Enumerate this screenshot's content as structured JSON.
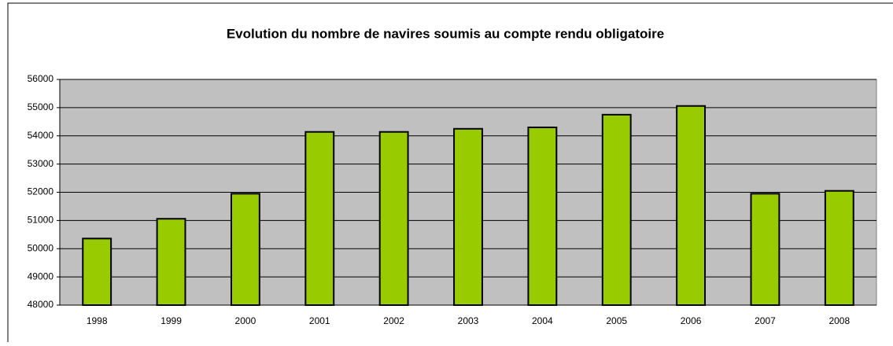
{
  "chart_data": {
    "type": "bar",
    "title": "Evolution du nombre de navires soumis au compte rendu obligatoire",
    "categories": [
      "1998",
      "1999",
      "2000",
      "2001",
      "2002",
      "2003",
      "2004",
      "2005",
      "2006",
      "2007",
      "2008"
    ],
    "values": [
      50360,
      51060,
      51950,
      54140,
      54140,
      54250,
      54300,
      54750,
      55060,
      51950,
      52050
    ],
    "color": "#99cc00",
    "ylim": [
      48000,
      56000
    ],
    "yticks": [
      48000,
      49000,
      50000,
      51000,
      52000,
      53000,
      54000,
      55000,
      56000
    ],
    "grid": true
  }
}
